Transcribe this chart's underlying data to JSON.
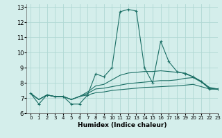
{
  "xlabel": "Humidex (Indice chaleur)",
  "bg_color": "#d4eeeb",
  "grid_color": "#b0d8d4",
  "line_color": "#1a6e64",
  "xlim": [
    -0.5,
    23
  ],
  "ylim": [
    6,
    13.2
  ],
  "xtick_labels": [
    "0",
    "1",
    "2",
    "3",
    "4",
    "5",
    "6",
    "7",
    "8",
    "9",
    "10",
    "11",
    "12",
    "13",
    "14",
    "15",
    "16",
    "17",
    "18",
    "19",
    "20",
    "21",
    "22",
    "23"
  ],
  "ytick_labels": [
    "6",
    "7",
    "8",
    "9",
    "10",
    "11",
    "12",
    "13"
  ],
  "series": [
    {
      "x": [
        0,
        1,
        2,
        3,
        4,
        5,
        6,
        7,
        8,
        9,
        10,
        11,
        12,
        13,
        14,
        15,
        16,
        17,
        18,
        19,
        20,
        21,
        22,
        23
      ],
      "y": [
        7.3,
        6.6,
        7.2,
        7.1,
        7.1,
        6.6,
        6.6,
        7.2,
        8.6,
        8.4,
        9.0,
        12.7,
        12.85,
        12.75,
        9.0,
        8.0,
        10.75,
        9.4,
        8.75,
        8.6,
        8.4,
        8.1,
        7.6,
        7.6
      ],
      "marker": "+"
    },
    {
      "x": [
        0,
        1,
        2,
        3,
        4,
        5,
        6,
        7,
        8,
        9,
        10,
        11,
        12,
        13,
        14,
        15,
        16,
        17,
        18,
        19,
        20,
        21,
        22,
        23
      ],
      "y": [
        7.3,
        6.9,
        7.2,
        7.1,
        7.1,
        6.9,
        7.1,
        7.4,
        7.8,
        7.9,
        8.2,
        8.5,
        8.65,
        8.7,
        8.75,
        8.75,
        8.8,
        8.75,
        8.7,
        8.65,
        8.4,
        8.1,
        7.7,
        7.6
      ],
      "marker": null
    },
    {
      "x": [
        0,
        1,
        2,
        3,
        4,
        5,
        6,
        7,
        8,
        9,
        10,
        11,
        12,
        13,
        14,
        15,
        16,
        17,
        18,
        19,
        20,
        21,
        22,
        23
      ],
      "y": [
        7.3,
        6.9,
        7.2,
        7.1,
        7.1,
        6.9,
        7.1,
        7.3,
        7.6,
        7.65,
        7.75,
        7.85,
        7.95,
        8.0,
        8.05,
        8.1,
        8.15,
        8.15,
        8.2,
        8.3,
        8.35,
        8.05,
        7.65,
        7.6
      ],
      "marker": null
    },
    {
      "x": [
        0,
        1,
        2,
        3,
        4,
        5,
        6,
        7,
        8,
        9,
        10,
        11,
        12,
        13,
        14,
        15,
        16,
        17,
        18,
        19,
        20,
        21,
        22,
        23
      ],
      "y": [
        7.3,
        6.9,
        7.2,
        7.1,
        7.1,
        6.9,
        7.1,
        7.2,
        7.35,
        7.4,
        7.5,
        7.55,
        7.6,
        7.65,
        7.7,
        7.72,
        7.75,
        7.78,
        7.8,
        7.85,
        7.9,
        7.75,
        7.6,
        7.58
      ],
      "marker": null
    }
  ]
}
